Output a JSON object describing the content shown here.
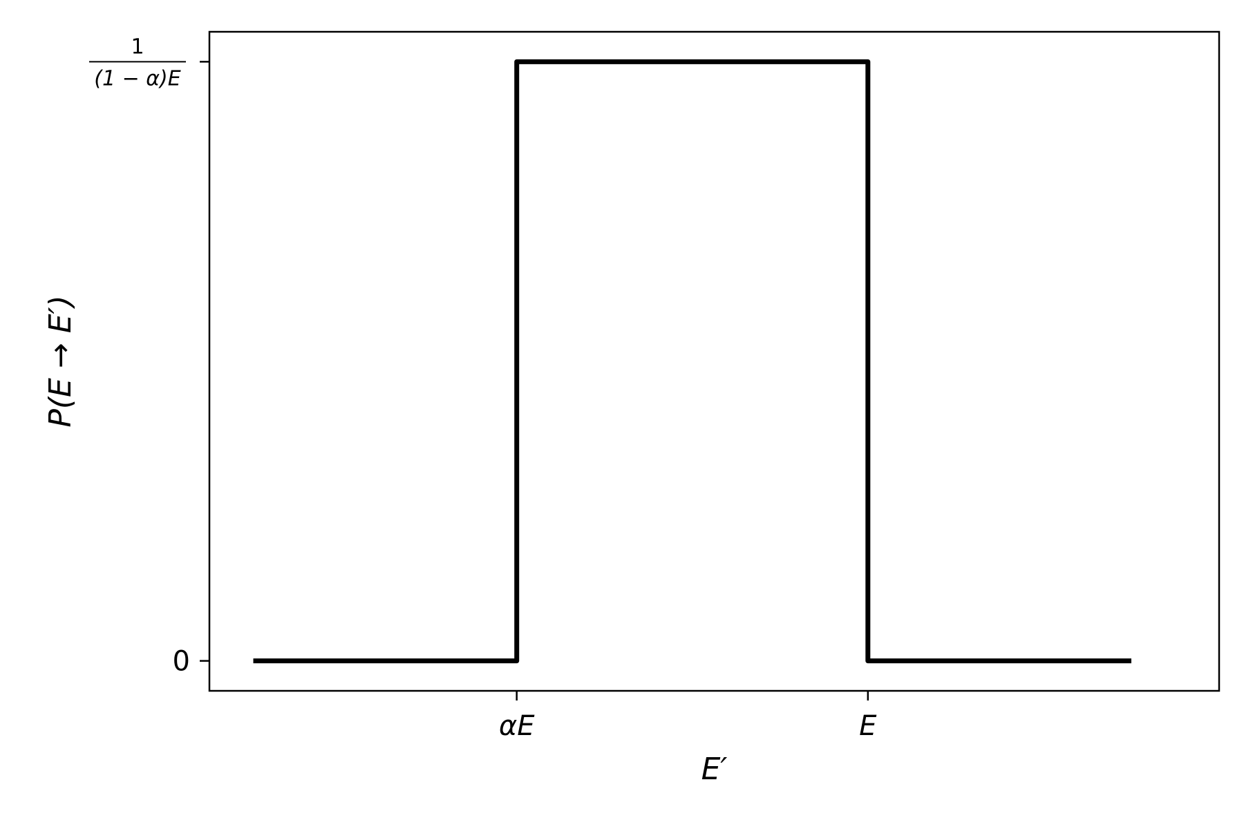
{
  "chart_data": {
    "type": "line",
    "x": [
      -0.25,
      0.5,
      0.5,
      1.5,
      1.5,
      2.25
    ],
    "series": [
      {
        "values": [
          0,
          0,
          1,
          1,
          0,
          0
        ],
        "color": "#000000"
      }
    ],
    "xlim": [
      -0.375,
      2.5
    ],
    "ylim": [
      -0.05,
      1.05
    ],
    "x_ticks": [
      {
        "value": 0.5,
        "label": "αE"
      },
      {
        "value": 1.5,
        "label": "E"
      }
    ],
    "y_ticks": [
      {
        "value": 0,
        "label": "0"
      },
      {
        "value": 1,
        "numerator": "1",
        "denominator": "(1 − α)E"
      }
    ],
    "xlabel": "E′",
    "ylabel": "P(E → E′)",
    "grid": false,
    "legend": "none"
  }
}
